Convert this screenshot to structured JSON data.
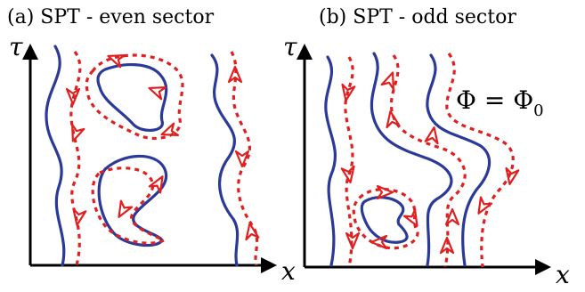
{
  "panels": [
    {
      "title": "(a) SPT - even sector",
      "x_axis_label": "x",
      "y_axis_label": "τ",
      "annotation": ""
    },
    {
      "title": "(b) SPT - odd sector",
      "x_axis_label": "x",
      "y_axis_label": "τ",
      "annotation_main": "Φ = Φ",
      "annotation_sub": "0"
    }
  ],
  "colors": {
    "worldline": "#2b3a98",
    "dual_line": "#e02020",
    "axis": "#000000"
  },
  "icons": {
    "arrowhead": "open-triangle-arrow"
  }
}
